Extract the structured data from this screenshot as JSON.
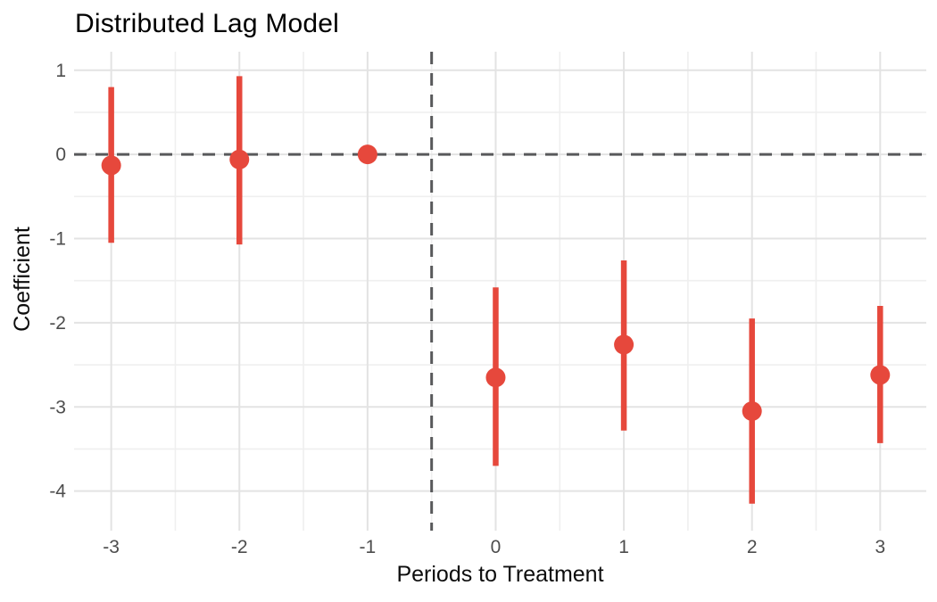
{
  "chart_data": {
    "type": "scatter",
    "subtype": "pointrange-event-study",
    "title": "Distributed Lag Model",
    "xlabel": "Periods to Treatment",
    "ylabel": "Coefficient",
    "x": [
      -3,
      -2,
      -1,
      0,
      1,
      2,
      3
    ],
    "series": [
      {
        "name": "coefficient",
        "points": [
          {
            "x": -3,
            "estimate": -0.13,
            "ci_low": -1.05,
            "ci_high": 0.8
          },
          {
            "x": -2,
            "estimate": -0.06,
            "ci_low": -1.07,
            "ci_high": 0.93
          },
          {
            "x": -1,
            "estimate": 0.0,
            "ci_low": 0.0,
            "ci_high": 0.0
          },
          {
            "x": 0,
            "estimate": -2.65,
            "ci_low": -3.7,
            "ci_high": -1.58
          },
          {
            "x": 1,
            "estimate": -2.26,
            "ci_low": -3.28,
            "ci_high": -1.26
          },
          {
            "x": 2,
            "estimate": -3.05,
            "ci_low": -4.15,
            "ci_high": -1.95
          },
          {
            "x": 3,
            "estimate": -2.62,
            "ci_low": -3.43,
            "ci_high": -1.8
          }
        ]
      }
    ],
    "reference_lines": {
      "horizontal_y": 0,
      "vertical_x": -0.5,
      "style": "dashed"
    },
    "axes": {
      "x_ticks": [
        {
          "value": -3,
          "label": "-3"
        },
        {
          "value": -2,
          "label": "-2"
        },
        {
          "value": -1,
          "label": "-1"
        },
        {
          "value": 0,
          "label": "0"
        },
        {
          "value": 1,
          "label": "1"
        },
        {
          "value": 2,
          "label": "2"
        },
        {
          "value": 3,
          "label": "3"
        }
      ],
      "y_ticks": [
        {
          "value": 1,
          "label": "1"
        },
        {
          "value": 0,
          "label": "0"
        },
        {
          "value": -1,
          "label": "-1"
        },
        {
          "value": -2,
          "label": "-2"
        },
        {
          "value": -3,
          "label": "-3"
        },
        {
          "value": -4,
          "label": "-4"
        }
      ],
      "xlim": [
        -3.29,
        3.36
      ],
      "ylim": [
        -4.47,
        1.22
      ]
    },
    "grid": {
      "major": true,
      "minor": true,
      "minor_step": 0.5
    },
    "legend": "none",
    "colors": {
      "point": "#E6483C",
      "reference_line": "#58595B",
      "grid_major": "#E3E3E3",
      "grid_minor": "#EFEFEF",
      "axis_text": "#4D4D4D",
      "title_text": "#000000",
      "background": "#FFFFFF"
    }
  }
}
